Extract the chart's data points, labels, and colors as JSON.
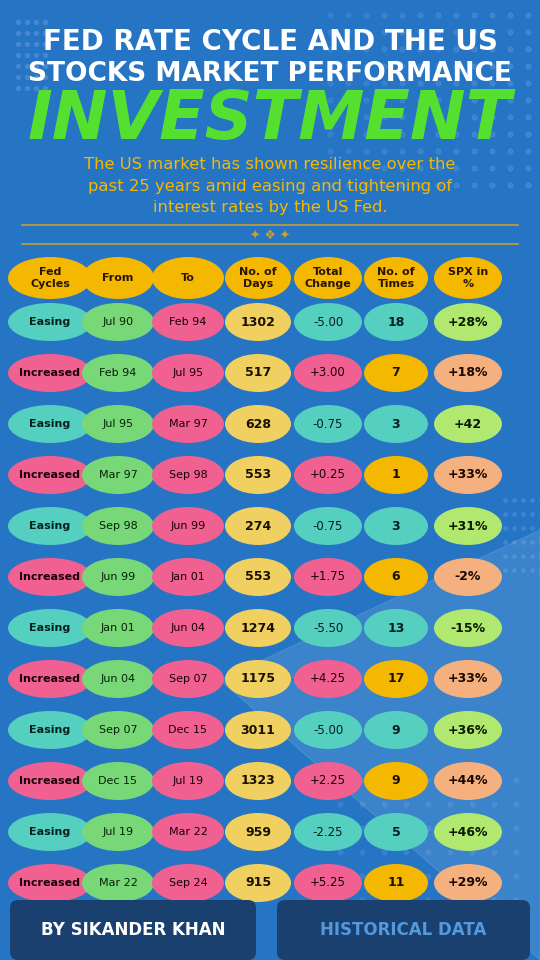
{
  "bg_color": "#2575c4",
  "title_line1": "FED RATE CYCLE AND THE US",
  "title_line2": "STOCKS MARKET PERFORMANCE",
  "title_big": "INVESTMENT",
  "subtitle": "The US market has shown resilience over the\npast 25 years amid easing and tightening of\ninterest rates by the US Fed.",
  "headers": [
    "Fed\nCycles",
    "From",
    "To",
    "No. of\nDays",
    "Total\nChange",
    "No. of\nTimes",
    "SPX in\n%"
  ],
  "rows": [
    [
      "Easing",
      "Jul 90",
      "Feb 94",
      "1302",
      "-5.00",
      "18",
      "+28%"
    ],
    [
      "Increased",
      "Feb 94",
      "Jul 95",
      "517",
      "+3.00",
      "7",
      "+18%"
    ],
    [
      "Easing",
      "Jul 95",
      "Mar 97",
      "628",
      "-0.75",
      "3",
      "+42"
    ],
    [
      "Increased",
      "Mar 97",
      "Sep 98",
      "553",
      "+0.25",
      "1",
      "+33%"
    ],
    [
      "Easing",
      "Sep 98",
      "Jun 99",
      "274",
      "-0.75",
      "3",
      "+31%"
    ],
    [
      "Increased",
      "Jun 99",
      "Jan 01",
      "553",
      "+1.75",
      "6",
      "-2%"
    ],
    [
      "Easing",
      "Jan 01",
      "Jun 04",
      "1274",
      "-5.50",
      "13",
      "-15%"
    ],
    [
      "Increased",
      "Jun 04",
      "Sep 07",
      "1175",
      "+4.25",
      "17",
      "+33%"
    ],
    [
      "Easing",
      "Sep 07",
      "Dec 15",
      "3011",
      "-5.00",
      "9",
      "+36%"
    ],
    [
      "Increased",
      "Dec 15",
      "Jul 19",
      "1323",
      "+2.25",
      "9",
      "+44%"
    ],
    [
      "Easing",
      "Jul 19",
      "Mar 22",
      "959",
      "-2.25",
      "5",
      "+46%"
    ],
    [
      "Increased",
      "Mar 22",
      "Sep 24",
      "915",
      "+5.25",
      "11",
      "+29%"
    ]
  ],
  "header_color": "#f5b800",
  "easing_color": "#55cfc0",
  "increased_color": "#f06090",
  "from_color": "#78d878",
  "to_color": "#f06090",
  "days_color": "#f0d060",
  "total_easing": "#55cfc0",
  "total_increased": "#f06090",
  "times_easing": "#55cfc0",
  "times_increased": "#f5b800",
  "spx_easing": "#b0e870",
  "spx_increased": "#f5b080",
  "footer_bg": "#1a4070",
  "footer_left": "BY SIKANDER KHAN",
  "footer_right": "HISTORICAL DATA",
  "title_color": "#ffffff",
  "invest_color": "#55e030",
  "subtitle_color": "#f5b800",
  "divider_color": "#c8a030",
  "dot_color": "#5090d8"
}
